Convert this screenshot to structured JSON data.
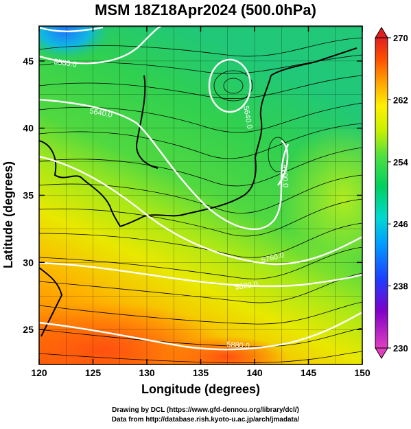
{
  "title": "MSM 18Z18Apr2024 (500.0hPa)",
  "x_axis": {
    "label": "Longitude (degrees)",
    "ticks": [
      120,
      125,
      130,
      135,
      140,
      145,
      150
    ],
    "range": [
      120,
      150
    ]
  },
  "y_axis": {
    "label": "Latitude  (degrees)",
    "ticks": [
      25,
      30,
      35,
      40,
      45
    ],
    "range": [
      22.4,
      47.6
    ]
  },
  "colorbar": {
    "ticks": [
      230,
      238,
      246,
      254,
      262,
      270
    ],
    "range": [
      230,
      270
    ],
    "colors": [
      "#e040c0",
      "#8000c8",
      "#1e3cff",
      "#00a0ff",
      "#00d8d0",
      "#00d060",
      "#50e040",
      "#c8f000",
      "#fff000",
      "#ffa000",
      "#ff5000",
      "#e02020"
    ]
  },
  "contour_labels": [
    "5580.0",
    "5640.0",
    "5640.0",
    "5700.0",
    "5760.0",
    "5820.0",
    "5880.0"
  ],
  "credits": {
    "line1": "Drawing by DCL (https://www.gfd-dennou.org/library/dcl/)",
    "line2": "Data from http://database.rish.kyoto-u.ac.jp/arch/jmadata/"
  }
}
